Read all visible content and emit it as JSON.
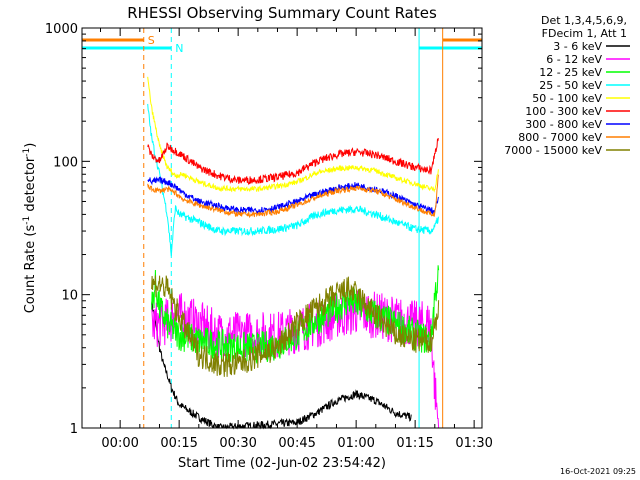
{
  "chart_data": {
    "type": "line",
    "title": "RHESSI Observing Summary Count Rates",
    "xlabel": "Start Time (02-Jun-02 23:54:42)",
    "ylabel_main": "Count Rate (s",
    "ylabel_sup1": "-1",
    "ylabel_mid": " detector",
    "ylabel_sup2": "-1",
    "ylabel_end": ")",
    "y_scale": "log",
    "ylim": [
      1,
      1000
    ],
    "xlim_minutes": [
      -9.7,
      92
    ],
    "x_tick_minutes": [
      0,
      15,
      30,
      45,
      60,
      75,
      90
    ],
    "x_tick_labels": [
      "00:00",
      "00:15",
      "00:30",
      "00:45",
      "01:00",
      "01:15",
      "01:30"
    ],
    "y_ticks": [
      1,
      10,
      100,
      1000
    ],
    "y_tick_labels": [
      "1",
      "10",
      "100",
      "1000"
    ],
    "legend": {
      "header1": "Det 1,3,4,5,6,9,",
      "header2": "FDecim 1, Att 1",
      "position": "top-right"
    },
    "flags": [
      {
        "label": "S",
        "color": "#ff7f00",
        "start": -9.7,
        "end": 6,
        "start2": 82,
        "end2": 92
      },
      {
        "label": "N",
        "color": "#00ffff",
        "start": -9.7,
        "end": 13,
        "start2": 76,
        "end2": 92
      }
    ],
    "markers": [
      {
        "x": 6,
        "color": "#ff7f00",
        "style": "dashed"
      },
      {
        "x": 13,
        "color": "#00ffff",
        "style": "dashed"
      },
      {
        "x": 76,
        "color": "#00ffff",
        "style": "solid"
      },
      {
        "x": 82,
        "color": "#ff7f00",
        "style": "solid"
      },
      {
        "x": 92,
        "color": "#ff7f00",
        "style": "dashed"
      }
    ],
    "series": [
      {
        "name": "3 - 6 keV",
        "color": "#000000",
        "points": [
          [
            8,
            9
          ],
          [
            9,
            6
          ],
          [
            10,
            4
          ],
          [
            11,
            3
          ],
          [
            12,
            2.5
          ],
          [
            13,
            2
          ],
          [
            15,
            1.5
          ],
          [
            20,
            1.2
          ],
          [
            25,
            1
          ],
          [
            45,
            1.1
          ],
          [
            50,
            1.3
          ],
          [
            55,
            1.6
          ],
          [
            60,
            1.8
          ],
          [
            65,
            1.6
          ],
          [
            70,
            1.3
          ],
          [
            74,
            1.2
          ]
        ]
      },
      {
        "name": "6 - 12 keV",
        "color": "#ff00ff",
        "points": [
          [
            8,
            6
          ],
          [
            10,
            6
          ],
          [
            13,
            6.5
          ],
          [
            15,
            7
          ],
          [
            20,
            6
          ],
          [
            25,
            5
          ],
          [
            30,
            5
          ],
          [
            35,
            5
          ],
          [
            40,
            5
          ],
          [
            45,
            5.5
          ],
          [
            50,
            6
          ],
          [
            55,
            7
          ],
          [
            60,
            7.5
          ],
          [
            65,
            7
          ],
          [
            70,
            6.5
          ],
          [
            75,
            6
          ],
          [
            79,
            6
          ],
          [
            80,
            2
          ],
          [
            81,
            1
          ]
        ]
      },
      {
        "name": "12 - 25 keV",
        "color": "#00ff00",
        "points": [
          [
            8,
            8
          ],
          [
            9,
            12
          ],
          [
            10,
            8
          ],
          [
            12,
            6
          ],
          [
            15,
            5
          ],
          [
            20,
            4.5
          ],
          [
            25,
            4.2
          ],
          [
            30,
            4
          ],
          [
            35,
            4
          ],
          [
            40,
            4.2
          ],
          [
            45,
            5
          ],
          [
            50,
            6.5
          ],
          [
            55,
            8
          ],
          [
            58,
            9
          ],
          [
            60,
            8.5
          ],
          [
            65,
            7
          ],
          [
            70,
            6
          ],
          [
            75,
            5
          ],
          [
            79,
            4.5
          ],
          [
            80,
            10
          ],
          [
            81,
            14
          ]
        ]
      },
      {
        "name": "25 - 50 keV",
        "color": "#00ffff",
        "points": [
          [
            7,
            260
          ],
          [
            8,
            150
          ],
          [
            10,
            80
          ],
          [
            12,
            40
          ],
          [
            13,
            20
          ],
          [
            14,
            45
          ],
          [
            15,
            40
          ],
          [
            20,
            35
          ],
          [
            25,
            30
          ],
          [
            30,
            30
          ],
          [
            35,
            30
          ],
          [
            40,
            31
          ],
          [
            45,
            33
          ],
          [
            50,
            40
          ],
          [
            55,
            43
          ],
          [
            60,
            44
          ],
          [
            65,
            40
          ],
          [
            70,
            35
          ],
          [
            75,
            31
          ],
          [
            79,
            30
          ],
          [
            80,
            32
          ],
          [
            81,
            38
          ]
        ]
      },
      {
        "name": "50 - 100 keV",
        "color": "#ffff00",
        "points": [
          [
            7,
            420
          ],
          [
            8,
            250
          ],
          [
            10,
            130
          ],
          [
            12,
            90
          ],
          [
            14,
            78
          ],
          [
            16,
            80
          ],
          [
            20,
            70
          ],
          [
            25,
            63
          ],
          [
            30,
            62
          ],
          [
            35,
            62
          ],
          [
            40,
            65
          ],
          [
            45,
            70
          ],
          [
            50,
            82
          ],
          [
            55,
            88
          ],
          [
            60,
            90
          ],
          [
            65,
            85
          ],
          [
            70,
            75
          ],
          [
            75,
            68
          ],
          [
            79,
            62
          ],
          [
            80,
            62
          ],
          [
            81,
            90
          ]
        ]
      },
      {
        "name": "100 - 300 keV",
        "color": "#ff0000",
        "points": [
          [
            7,
            130
          ],
          [
            8,
            110
          ],
          [
            10,
            100
          ],
          [
            12,
            130
          ],
          [
            14,
            120
          ],
          [
            16,
            110
          ],
          [
            20,
            90
          ],
          [
            25,
            78
          ],
          [
            30,
            72
          ],
          [
            35,
            73
          ],
          [
            40,
            76
          ],
          [
            45,
            82
          ],
          [
            50,
            100
          ],
          [
            55,
            112
          ],
          [
            60,
            118
          ],
          [
            65,
            112
          ],
          [
            70,
            100
          ],
          [
            75,
            90
          ],
          [
            79,
            85
          ],
          [
            80,
            110
          ],
          [
            81,
            160
          ]
        ]
      },
      {
        "name": "300 - 800 keV",
        "color": "#0000ff",
        "points": [
          [
            7,
            75
          ],
          [
            8,
            70
          ],
          [
            10,
            72
          ],
          [
            12,
            70
          ],
          [
            14,
            65
          ],
          [
            16,
            58
          ],
          [
            20,
            50
          ],
          [
            25,
            46
          ],
          [
            30,
            43
          ],
          [
            35,
            43
          ],
          [
            40,
            45
          ],
          [
            45,
            50
          ],
          [
            50,
            57
          ],
          [
            55,
            63
          ],
          [
            60,
            66
          ],
          [
            65,
            62
          ],
          [
            70,
            55
          ],
          [
            75,
            47
          ],
          [
            79,
            43
          ],
          [
            80,
            42
          ],
          [
            81,
            55
          ]
        ]
      },
      {
        "name": "800 - 7000 keV",
        "color": "#ff7f00",
        "points": [
          [
            7,
            65
          ],
          [
            8,
            62
          ],
          [
            10,
            60
          ],
          [
            12,
            62
          ],
          [
            14,
            58
          ],
          [
            16,
            52
          ],
          [
            20,
            47
          ],
          [
            25,
            43
          ],
          [
            30,
            40
          ],
          [
            35,
            40
          ],
          [
            40,
            42
          ],
          [
            45,
            47
          ],
          [
            50,
            54
          ],
          [
            55,
            60
          ],
          [
            60,
            63
          ],
          [
            65,
            60
          ],
          [
            70,
            52
          ],
          [
            75,
            45
          ],
          [
            79,
            40
          ],
          [
            80,
            40
          ],
          [
            81,
            85
          ]
        ]
      },
      {
        "name": "7000 - 15000 keV",
        "color": "#808000",
        "points": [
          [
            8,
            12
          ],
          [
            10,
            12
          ],
          [
            12,
            11
          ],
          [
            14,
            8
          ],
          [
            16,
            6
          ],
          [
            20,
            3.6
          ],
          [
            25,
            3
          ],
          [
            30,
            3
          ],
          [
            35,
            3.5
          ],
          [
            40,
            4
          ],
          [
            45,
            6
          ],
          [
            50,
            8
          ],
          [
            55,
            10
          ],
          [
            58,
            11
          ],
          [
            60,
            10
          ],
          [
            65,
            7
          ],
          [
            70,
            5
          ],
          [
            75,
            4.5
          ],
          [
            79,
            4.5
          ],
          [
            80,
            6
          ],
          [
            81,
            8
          ]
        ]
      }
    ],
    "grid": false,
    "timestamp": "16-Oct-2021 09:25"
  }
}
